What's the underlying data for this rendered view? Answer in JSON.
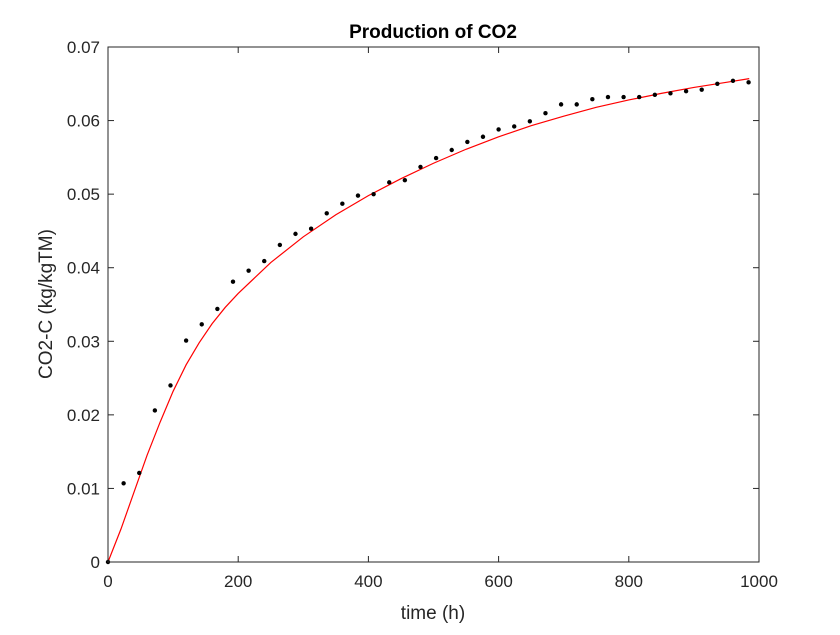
{
  "chart_data": {
    "type": "scatter",
    "title": "Production of CO2",
    "xlabel": "time (h)",
    "ylabel": "CO2-C (kg/kgTM)",
    "xlim": [
      0,
      1000
    ],
    "ylim": [
      0,
      0.07
    ],
    "x_ticks": [
      0,
      200,
      400,
      600,
      800,
      1000
    ],
    "x_tick_labels": [
      "0",
      "200",
      "400",
      "600",
      "800",
      "1000"
    ],
    "y_ticks": [
      0,
      0.01,
      0.02,
      0.03,
      0.04,
      0.05,
      0.06,
      0.07
    ],
    "y_tick_labels": [
      "0",
      "0.01",
      "0.02",
      "0.03",
      "0.04",
      "0.05",
      "0.06",
      "0.07"
    ],
    "grid": false,
    "legend": "none",
    "series": [
      {
        "kind": "scatter",
        "color": "#000000",
        "x": [
          0,
          24,
          48,
          72,
          96,
          120,
          144,
          168,
          192,
          216,
          240,
          264,
          288,
          312,
          336,
          360,
          384,
          408,
          432,
          456,
          480,
          504,
          528,
          552,
          576,
          600,
          624,
          648,
          672,
          696,
          720,
          744,
          768,
          792,
          816,
          840,
          864,
          888,
          912,
          936,
          960,
          984
        ],
        "y": [
          0.0,
          0.0107,
          0.0121,
          0.0206,
          0.024,
          0.0301,
          0.0323,
          0.0344,
          0.0381,
          0.0396,
          0.0409,
          0.0431,
          0.0446,
          0.0453,
          0.0474,
          0.0487,
          0.0498,
          0.05,
          0.0516,
          0.0519,
          0.0537,
          0.0549,
          0.056,
          0.0571,
          0.0578,
          0.0588,
          0.0592,
          0.0599,
          0.061,
          0.0622,
          0.0622,
          0.0629,
          0.0632,
          0.0632,
          0.0632,
          0.0635,
          0.0637,
          0.064,
          0.0642,
          0.065,
          0.0654,
          0.0652
        ]
      },
      {
        "kind": "line",
        "color": "#ff0000",
        "x": [
          0,
          20,
          40,
          60,
          80,
          100,
          120,
          140,
          160,
          180,
          200,
          250,
          300,
          350,
          400,
          450,
          500,
          550,
          600,
          650,
          700,
          750,
          800,
          850,
          900,
          950,
          985
        ],
        "y": [
          0.0,
          0.0045,
          0.0095,
          0.0145,
          0.019,
          0.0232,
          0.0268,
          0.0298,
          0.0324,
          0.0346,
          0.0365,
          0.0407,
          0.0442,
          0.0472,
          0.0498,
          0.0521,
          0.0542,
          0.0561,
          0.0578,
          0.0593,
          0.0606,
          0.0618,
          0.0628,
          0.0637,
          0.0645,
          0.0652,
          0.0657
        ]
      }
    ]
  }
}
